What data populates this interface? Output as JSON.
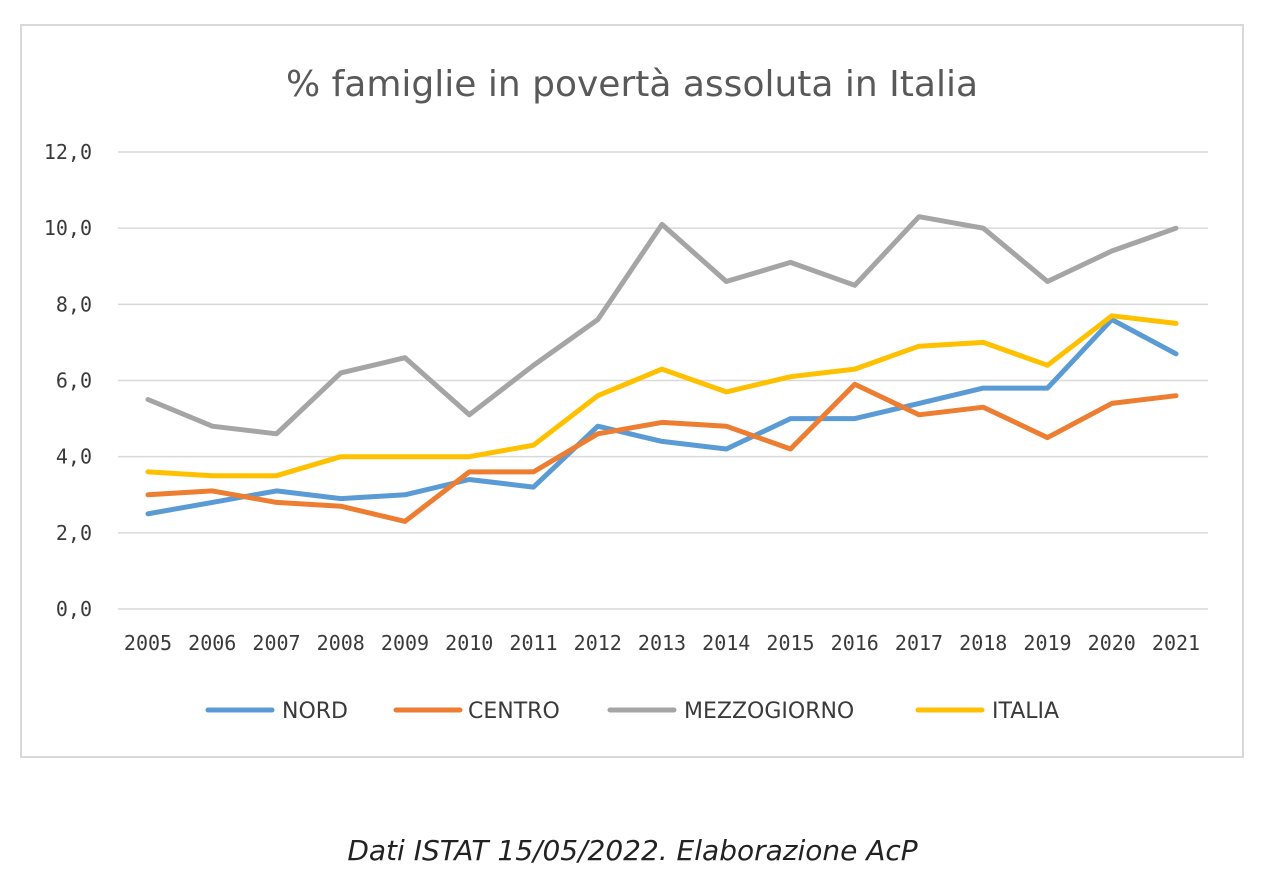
{
  "chart_data": {
    "type": "line",
    "title": "% famiglie in povertà assoluta in Italia",
    "categories": [
      "2005",
      "2006",
      "2007",
      "2008",
      "2009",
      "2010",
      "2011",
      "2012",
      "2013",
      "2014",
      "2015",
      "2016",
      "2017",
      "2018",
      "2019",
      "2020",
      "2021"
    ],
    "y_ticks": [
      "0,0",
      "2,0",
      "4,0",
      "6,0",
      "8,0",
      "10,0",
      "12,0"
    ],
    "ylim": [
      0,
      12
    ],
    "grid": true,
    "legend_position": "bottom",
    "series": [
      {
        "name": "NORD",
        "color": "#5b9bd5",
        "values": [
          2.5,
          2.8,
          3.1,
          2.9,
          3.0,
          3.4,
          3.2,
          4.8,
          4.4,
          4.2,
          5.0,
          5.0,
          5.4,
          5.8,
          5.8,
          7.6,
          6.7
        ]
      },
      {
        "name": "CENTRO",
        "color": "#ed7d31",
        "values": [
          3.0,
          3.1,
          2.8,
          2.7,
          2.3,
          3.6,
          3.6,
          4.6,
          4.9,
          4.8,
          4.2,
          5.9,
          5.1,
          5.3,
          4.5,
          5.4,
          5.6
        ]
      },
      {
        "name": "MEZZOGIORNO",
        "color": "#a5a5a5",
        "values": [
          5.5,
          4.8,
          4.6,
          6.2,
          6.6,
          5.1,
          6.4,
          7.6,
          10.1,
          8.6,
          9.1,
          8.5,
          10.3,
          10.0,
          8.6,
          9.4,
          10.0
        ]
      },
      {
        "name": "ITALIA",
        "color": "#ffc000",
        "values": [
          3.6,
          3.5,
          3.5,
          4.0,
          4.0,
          4.0,
          4.3,
          5.6,
          6.3,
          5.7,
          6.1,
          6.3,
          6.9,
          7.0,
          6.4,
          7.7,
          7.5
        ]
      }
    ]
  },
  "caption": "Dati ISTAT 15/05/2022. Elaborazione AcP"
}
